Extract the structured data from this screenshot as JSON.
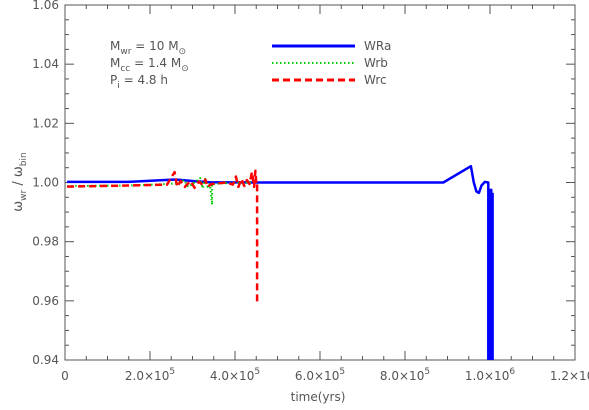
{
  "chart_data": {
    "type": "line",
    "title": "",
    "xlabel": "time(yrs)",
    "ylabel": {
      "base": "ω",
      "num_sub": "wr",
      "sep": " / ",
      "den_sub": "bin"
    },
    "xlim": [
      0,
      1200000
    ],
    "ylim": [
      0.94,
      1.06
    ],
    "x_ticks": [
      {
        "value": 0,
        "label": "0"
      },
      {
        "value": 200000,
        "label": "2.0×10",
        "exp": "5"
      },
      {
        "value": 400000,
        "label": "4.0×10",
        "exp": "5"
      },
      {
        "value": 600000,
        "label": "6.0×10",
        "exp": "5"
      },
      {
        "value": 800000,
        "label": "8.0×10",
        "exp": "5"
      },
      {
        "value": 1000000,
        "label": "1.0×10",
        "exp": "6"
      },
      {
        "value": 1200000,
        "label": "1.2×10",
        "exp": "6"
      }
    ],
    "y_ticks": [
      {
        "value": 0.94,
        "label": "0.94"
      },
      {
        "value": 0.96,
        "label": "0.96"
      },
      {
        "value": 0.98,
        "label": "0.98"
      },
      {
        "value": 1.0,
        "label": "1.00"
      },
      {
        "value": 1.02,
        "label": "1.02"
      },
      {
        "value": 1.04,
        "label": "1.04"
      },
      {
        "value": 1.06,
        "label": "1.06"
      }
    ],
    "annotations": [
      {
        "pre": "M",
        "sub": "wr",
        "post": " = 10 M",
        "post_sub": "⊙"
      },
      {
        "pre": "M",
        "sub": "cc",
        "post": " = 1.4 M",
        "post_sub": "⊙"
      },
      {
        "pre": "P",
        "sub": "i",
        "post": " = 4.8 h",
        "post_sub": ""
      }
    ],
    "legend_position": "top-center",
    "series": [
      {
        "name": "WRa",
        "color": "#0000ff",
        "dash": "solid",
        "points": [
          [
            5000,
            1.0002
          ],
          [
            150000,
            1.0002
          ],
          [
            230000,
            1.0008
          ],
          [
            260000,
            1.001
          ],
          [
            300000,
            1.0005
          ],
          [
            340000,
            1.0001
          ],
          [
            450000,
            1.0
          ],
          [
            600000,
            1.0
          ],
          [
            890000,
            1.0
          ],
          [
            955000,
            1.0055
          ],
          [
            962000,
            1.0
          ],
          [
            968000,
            0.997
          ],
          [
            974000,
            0.9965
          ],
          [
            980000,
            0.999
          ],
          [
            988000,
            1.0002
          ],
          [
            996000,
            1.0
          ],
          [
            996000,
            0.938
          ],
          [
            1000000,
            0.938
          ],
          [
            1000000,
            0.9975
          ],
          [
            1003000,
            0.9975
          ],
          [
            1003000,
            0.938
          ],
          [
            1006000,
            0.938
          ],
          [
            1006000,
            0.9965
          ]
        ]
      },
      {
        "name": "Wrb",
        "color": "#00cc00",
        "dash": "dotted",
        "points": [
          [
            5000,
            0.9988
          ],
          [
            150000,
            0.999
          ],
          [
            240000,
            0.9995
          ],
          [
            265000,
            0.9997
          ],
          [
            280000,
            1.0008
          ],
          [
            290000,
            0.9985
          ],
          [
            305000,
            1.0
          ],
          [
            318000,
            1.0015
          ],
          [
            324000,
            0.998
          ],
          [
            330000,
            1.0012
          ],
          [
            336000,
            0.9985
          ],
          [
            341000,
            0.9995
          ],
          [
            346000,
            0.9925
          ],
          [
            346000,
            0.9995
          ],
          [
            380000,
            0.9998
          ],
          [
            450000,
            1.0
          ]
        ]
      },
      {
        "name": "Wrc",
        "color": "#ff0000",
        "dash": "dashed",
        "points": [
          [
            5000,
            0.9986
          ],
          [
            150000,
            0.999
          ],
          [
            240000,
            0.9993
          ],
          [
            258000,
            1.0035
          ],
          [
            264000,
            0.9985
          ],
          [
            272000,
            1.0005
          ],
          [
            282000,
            0.9985
          ],
          [
            295000,
            1.0005
          ],
          [
            305000,
            0.9982
          ],
          [
            315000,
            1.0003
          ],
          [
            324000,
            0.9992
          ],
          [
            330000,
            1.001
          ],
          [
            335000,
            0.9985
          ],
          [
            345000,
            0.9995
          ],
          [
            380000,
            1.0
          ],
          [
            395000,
            0.9993
          ],
          [
            402000,
            1.002
          ],
          [
            408000,
            0.9985
          ],
          [
            415000,
            1.0012
          ],
          [
            422000,
            0.9988
          ],
          [
            428000,
            1.0008
          ],
          [
            434000,
            0.9995
          ],
          [
            440000,
            1.0035
          ],
          [
            445000,
            0.9985
          ],
          [
            448000,
            1.004
          ],
          [
            450000,
            0.9994
          ],
          [
            452000,
            0.9998
          ],
          [
            452000,
            0.959
          ]
        ]
      }
    ]
  }
}
